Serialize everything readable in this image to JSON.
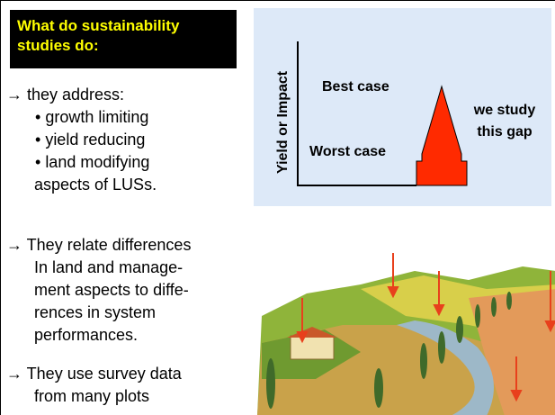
{
  "header": {
    "title": "What do  sustainability studies do:"
  },
  "points": [
    {
      "lines": [
        "→ they address:"
      ],
      "subitems": [
        "growth limiting",
        "yield reducing",
        "land modifying"
      ],
      "tail": "aspects of LUSs."
    },
    {
      "lines": [
        "→ They relate differences",
        "In land and  manage-",
        "ment aspects to diffe-",
        "rences in system",
        "performances."
      ]
    },
    {
      "lines": [
        "→ They use survey data",
        "from many plots"
      ]
    }
  ],
  "diagram": {
    "y_axis_label": "Yield or Impact",
    "best_case": "Best case",
    "worst_case": "Worst case",
    "gap_label": [
      "we study",
      "this gap"
    ]
  }
}
